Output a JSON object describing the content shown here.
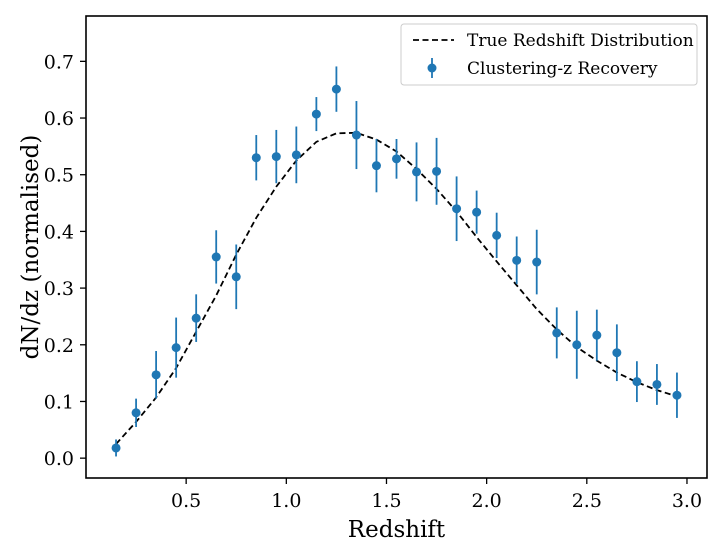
{
  "chart_data": {
    "type": "scatter",
    "xlabel": "Redshift",
    "ylabel": "dN/dz (normalised)",
    "xlim": [
      0.0,
      3.1
    ],
    "ylim": [
      -0.035,
      0.78
    ],
    "xticks": [
      {
        "value": 0.5,
        "label": "0.5"
      },
      {
        "value": 1.0,
        "label": "1.0"
      },
      {
        "value": 1.5,
        "label": "1.5"
      },
      {
        "value": 2.0,
        "label": "2.0"
      },
      {
        "value": 2.5,
        "label": "2.5"
      },
      {
        "value": 3.0,
        "label": "3.0"
      }
    ],
    "yticks": [
      {
        "value": 0.0,
        "label": "0.0"
      },
      {
        "value": 0.1,
        "label": "0.1"
      },
      {
        "value": 0.2,
        "label": "0.2"
      },
      {
        "value": 0.3,
        "label": "0.3"
      },
      {
        "value": 0.4,
        "label": "0.4"
      },
      {
        "value": 0.5,
        "label": "0.5"
      },
      {
        "value": 0.6,
        "label": "0.6"
      },
      {
        "value": 0.7,
        "label": "0.7"
      }
    ],
    "grid": false,
    "legend_position": "top-right",
    "series": [
      {
        "name": "True Redshift Distribution",
        "style": "dashed-line",
        "color": "#000000",
        "x": [
          0.15,
          0.25,
          0.35,
          0.45,
          0.55,
          0.65,
          0.75,
          0.85,
          0.95,
          1.05,
          1.15,
          1.25,
          1.35,
          1.45,
          1.55,
          1.65,
          1.75,
          1.85,
          1.95,
          2.05,
          2.15,
          2.25,
          2.35,
          2.45,
          2.55,
          2.65,
          2.75,
          2.85,
          2.95
        ],
        "y": [
          0.025,
          0.064,
          0.107,
          0.159,
          0.223,
          0.287,
          0.359,
          0.424,
          0.479,
          0.525,
          0.558,
          0.573,
          0.574,
          0.562,
          0.541,
          0.51,
          0.475,
          0.435,
          0.39,
          0.347,
          0.305,
          0.263,
          0.227,
          0.196,
          0.172,
          0.151,
          0.134,
          0.12,
          0.109
        ]
      },
      {
        "name": "Clustering-z Recovery",
        "style": "errorbar-markers",
        "color": "#1f77b4",
        "x": [
          0.15,
          0.25,
          0.35,
          0.45,
          0.55,
          0.65,
          0.75,
          0.85,
          0.95,
          1.05,
          1.15,
          1.25,
          1.35,
          1.45,
          1.55,
          1.65,
          1.75,
          1.85,
          1.95,
          2.05,
          2.15,
          2.25,
          2.35,
          2.45,
          2.55,
          2.65,
          2.75,
          2.85,
          2.95
        ],
        "y": [
          0.018,
          0.08,
          0.147,
          0.195,
          0.247,
          0.355,
          0.32,
          0.53,
          0.532,
          0.535,
          0.607,
          0.651,
          0.57,
          0.516,
          0.528,
          0.505,
          0.506,
          0.44,
          0.434,
          0.393,
          0.349,
          0.346,
          0.221,
          0.2,
          0.217,
          0.186,
          0.135,
          0.13,
          0.111
        ],
        "yerr": [
          0.015,
          0.025,
          0.042,
          0.053,
          0.042,
          0.047,
          0.057,
          0.04,
          0.047,
          0.05,
          0.03,
          0.04,
          0.06,
          0.047,
          0.035,
          0.052,
          0.059,
          0.057,
          0.038,
          0.04,
          0.042,
          0.057,
          0.045,
          0.06,
          0.045,
          0.05,
          0.036,
          0.036,
          0.04
        ]
      }
    ]
  }
}
